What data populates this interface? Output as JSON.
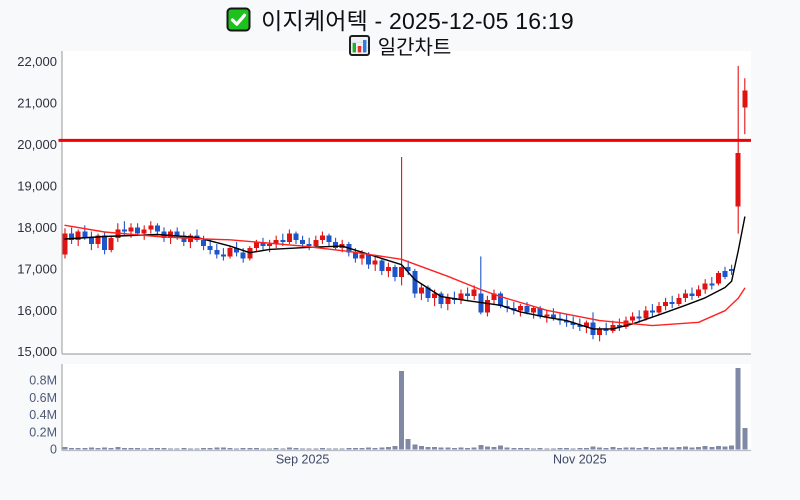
{
  "header": {
    "title": "이지케어텍 - 2025-12-05 16:19",
    "subtitle": "일간차트"
  },
  "chart_data": {
    "type": "candlestick",
    "title": "이지케어텍 - 2025-12-05 16:19",
    "subtitle": "일간차트",
    "legend_position": "none",
    "grid": false,
    "price_axis": {
      "min": 15000,
      "max": 22000,
      "step": 1000,
      "ticks": [
        {
          "value": 22000,
          "label": "22,000"
        },
        {
          "value": 21000,
          "label": "21,000"
        },
        {
          "value": 20000,
          "label": "20,000"
        },
        {
          "value": 19000,
          "label": "19,000"
        },
        {
          "value": 18000,
          "label": "18,000"
        },
        {
          "value": 17000,
          "label": "17,000"
        },
        {
          "value": 16000,
          "label": "16,000"
        },
        {
          "value": 15000,
          "label": "15,000"
        }
      ]
    },
    "volume_axis": {
      "min": 0,
      "max": 1000000,
      "ticks": [
        {
          "value": 800000,
          "label": "0.8M"
        },
        {
          "value": 600000,
          "label": "0.6M"
        },
        {
          "value": 400000,
          "label": "0.4M"
        },
        {
          "value": 200000,
          "label": "0.2M"
        },
        {
          "value": 0,
          "label": "0"
        }
      ]
    },
    "x_ticks": [
      {
        "label": "Sep 2025",
        "index": 36
      },
      {
        "label": "Nov 2025",
        "index": 78
      }
    ],
    "hline": {
      "value": 20100,
      "color": "#f50000"
    },
    "colors": {
      "up": "#e01313",
      "down": "#1e56c9",
      "volume": "#7f89a6",
      "ma_short": "#000000",
      "ma_long": "#ff2222",
      "checkbox_green": "#1fc11f"
    },
    "candles_format": [
      "open",
      "high",
      "low",
      "close",
      "volume"
    ],
    "candles": [
      [
        17350,
        17980,
        17250,
        17850,
        30000
      ],
      [
        17850,
        18000,
        17600,
        17700,
        20000
      ],
      [
        17700,
        17950,
        17550,
        17900,
        18000
      ],
      [
        17900,
        18050,
        17700,
        17750,
        15000
      ],
      [
        17750,
        17900,
        17450,
        17600,
        22000
      ],
      [
        17600,
        17850,
        17500,
        17800,
        16000
      ],
      [
        17800,
        17900,
        17350,
        17450,
        25000
      ],
      [
        17450,
        17800,
        17400,
        17750,
        20000
      ],
      [
        17750,
        18100,
        17650,
        17950,
        28000
      ],
      [
        17950,
        18150,
        17800,
        17900,
        20000
      ],
      [
        17900,
        18100,
        17750,
        18000,
        18000
      ],
      [
        18000,
        18100,
        17800,
        17850,
        15000
      ],
      [
        17850,
        18050,
        17700,
        17950,
        14000
      ],
      [
        17950,
        18150,
        17850,
        18050,
        20000
      ],
      [
        18050,
        18100,
        17800,
        17900,
        17000
      ],
      [
        17900,
        18000,
        17650,
        17750,
        15000
      ],
      [
        17750,
        17950,
        17600,
        17900,
        13000
      ],
      [
        17900,
        18000,
        17700,
        17800,
        12000
      ],
      [
        17800,
        17900,
        17550,
        17650,
        16000
      ],
      [
        17650,
        17850,
        17500,
        17800,
        14000
      ],
      [
        17800,
        17950,
        17650,
        17700,
        12000
      ],
      [
        17700,
        17800,
        17450,
        17550,
        18000
      ],
      [
        17550,
        17700,
        17350,
        17450,
        20000
      ],
      [
        17450,
        17600,
        17250,
        17350,
        22000
      ],
      [
        17350,
        17500,
        17200,
        17300,
        25000
      ],
      [
        17300,
        17550,
        17250,
        17500,
        18000
      ],
      [
        17500,
        17650,
        17300,
        17400,
        14000
      ],
      [
        17400,
        17500,
        17150,
        17250,
        20000
      ],
      [
        17250,
        17550,
        17200,
        17500,
        18000
      ],
      [
        17500,
        17700,
        17400,
        17650,
        16000
      ],
      [
        17650,
        17750,
        17450,
        17550,
        13000
      ],
      [
        17550,
        17700,
        17400,
        17600,
        12000
      ],
      [
        17600,
        17800,
        17500,
        17700,
        15000
      ],
      [
        17700,
        17850,
        17550,
        17650,
        13000
      ],
      [
        17650,
        17950,
        17600,
        17850,
        22000
      ],
      [
        17850,
        17900,
        17600,
        17700,
        15000
      ],
      [
        17700,
        17800,
        17500,
        17600,
        13000
      ],
      [
        17600,
        17750,
        17450,
        17550,
        12000
      ],
      [
        17550,
        17800,
        17500,
        17700,
        14000
      ],
      [
        17700,
        17900,
        17600,
        17800,
        16000
      ],
      [
        17800,
        17850,
        17550,
        17650,
        12000
      ],
      [
        17650,
        17750,
        17450,
        17500,
        13000
      ],
      [
        17500,
        17700,
        17400,
        17600,
        14000
      ],
      [
        17600,
        17650,
        17300,
        17400,
        18000
      ],
      [
        17400,
        17500,
        17150,
        17250,
        20000
      ],
      [
        17250,
        17450,
        17100,
        17350,
        16000
      ],
      [
        17350,
        17400,
        17000,
        17100,
        22000
      ],
      [
        17100,
        17300,
        16950,
        17200,
        18000
      ],
      [
        17200,
        17250,
        16850,
        16950,
        26000
      ],
      [
        16950,
        17150,
        16800,
        17050,
        30000
      ],
      [
        17050,
        17100,
        16700,
        16800,
        40000
      ],
      [
        16800,
        19700,
        16600,
        17050,
        910000
      ],
      [
        17050,
        17200,
        16850,
        16950,
        120000
      ],
      [
        16950,
        17000,
        16300,
        16400,
        60000
      ],
      [
        16400,
        16650,
        16250,
        16550,
        40000
      ],
      [
        16550,
        16600,
        16200,
        16300,
        30000
      ],
      [
        16300,
        16500,
        16100,
        16400,
        28000
      ],
      [
        16400,
        16450,
        16050,
        16150,
        26000
      ],
      [
        16150,
        16400,
        16000,
        16300,
        22000
      ],
      [
        16300,
        16450,
        16150,
        16250,
        18000
      ],
      [
        16250,
        16500,
        16150,
        16400,
        24000
      ],
      [
        16400,
        16550,
        16250,
        16350,
        18000
      ],
      [
        16350,
        16600,
        16250,
        16500,
        22000
      ],
      [
        16400,
        17300,
        15900,
        15950,
        50000
      ],
      [
        15950,
        16350,
        15850,
        16250,
        35000
      ],
      [
        16250,
        16500,
        16150,
        16400,
        28000
      ],
      [
        16400,
        16450,
        16050,
        16100,
        45000
      ],
      [
        16100,
        16250,
        15950,
        16050,
        25000
      ],
      [
        16050,
        16200,
        15900,
        16000,
        18000
      ],
      [
        16000,
        16150,
        15850,
        16100,
        16000
      ],
      [
        16100,
        16200,
        15900,
        15950,
        18000
      ],
      [
        15950,
        16100,
        15800,
        16050,
        14000
      ],
      [
        16050,
        16100,
        15800,
        15850,
        16000
      ],
      [
        15850,
        16000,
        15700,
        15900,
        14000
      ],
      [
        15900,
        16050,
        15750,
        15800,
        12000
      ],
      [
        15800,
        15950,
        15650,
        15750,
        15000
      ],
      [
        15750,
        15900,
        15600,
        15700,
        16000
      ],
      [
        15700,
        15850,
        15550,
        15650,
        14000
      ],
      [
        15650,
        15800,
        15500,
        15600,
        18000
      ],
      [
        15600,
        15750,
        15450,
        15700,
        15000
      ],
      [
        15700,
        15950,
        15300,
        15400,
        35000
      ],
      [
        15400,
        15600,
        15250,
        15550,
        25000
      ],
      [
        15550,
        15700,
        15400,
        15500,
        16000
      ],
      [
        15500,
        15750,
        15450,
        15650,
        30000
      ],
      [
        15650,
        15800,
        15500,
        15600,
        15000
      ],
      [
        15600,
        15850,
        15550,
        15750,
        22000
      ],
      [
        15750,
        15950,
        15650,
        15850,
        24000
      ],
      [
        15850,
        16000,
        15700,
        15800,
        18000
      ],
      [
        15800,
        16100,
        15750,
        16000,
        30000
      ],
      [
        16000,
        16150,
        15850,
        15950,
        20000
      ],
      [
        15950,
        16200,
        15900,
        16100,
        26000
      ],
      [
        16100,
        16300,
        16000,
        16200,
        30000
      ],
      [
        16200,
        16350,
        16050,
        16150,
        22000
      ],
      [
        16150,
        16400,
        16100,
        16300,
        28000
      ],
      [
        16300,
        16500,
        16200,
        16400,
        35000
      ],
      [
        16400,
        16550,
        16250,
        16350,
        24000
      ],
      [
        16350,
        16600,
        16300,
        16500,
        30000
      ],
      [
        16500,
        16750,
        16400,
        16650,
        38000
      ],
      [
        16650,
        16800,
        16500,
        16600,
        28000
      ],
      [
        16650,
        16950,
        16600,
        16900,
        42000
      ],
      [
        16950,
        17050,
        16750,
        16800,
        36000
      ],
      [
        17000,
        17100,
        16850,
        16950,
        48000
      ],
      [
        18500,
        21900,
        17850,
        19800,
        950000
      ],
      [
        20900,
        21600,
        20250,
        21300,
        250000
      ]
    ],
    "overlays": [
      {
        "name": "ma-short",
        "color": "#000000",
        "points": [
          [
            0,
            17720
          ],
          [
            6,
            17780
          ],
          [
            14,
            17830
          ],
          [
            20,
            17760
          ],
          [
            25,
            17550
          ],
          [
            28,
            17390
          ],
          [
            31,
            17470
          ],
          [
            37,
            17520
          ],
          [
            42,
            17550
          ],
          [
            46,
            17350
          ],
          [
            51,
            17100
          ],
          [
            53,
            16740
          ],
          [
            57,
            16330
          ],
          [
            61,
            16230
          ],
          [
            66,
            16120
          ],
          [
            69,
            15960
          ],
          [
            73,
            15830
          ],
          [
            76,
            15750
          ],
          [
            80,
            15550
          ],
          [
            83,
            15550
          ],
          [
            86,
            15670
          ],
          [
            90,
            15890
          ],
          [
            94,
            16120
          ],
          [
            97,
            16300
          ],
          [
            100,
            16550
          ],
          [
            101,
            16700
          ],
          [
            102,
            17430
          ],
          [
            103,
            18250
          ]
        ]
      },
      {
        "name": "ma-long",
        "color": "#ff2222",
        "points": [
          [
            0,
            18050
          ],
          [
            6,
            17890
          ],
          [
            14,
            17780
          ],
          [
            21,
            17720
          ],
          [
            25,
            17700
          ],
          [
            36,
            17550
          ],
          [
            43,
            17420
          ],
          [
            51,
            17230
          ],
          [
            58,
            16820
          ],
          [
            63,
            16500
          ],
          [
            66,
            16330
          ],
          [
            73,
            16000
          ],
          [
            81,
            15750
          ],
          [
            89,
            15630
          ],
          [
            96,
            15710
          ],
          [
            100,
            15990
          ],
          [
            102,
            16290
          ],
          [
            103,
            16530
          ]
        ]
      }
    ]
  }
}
